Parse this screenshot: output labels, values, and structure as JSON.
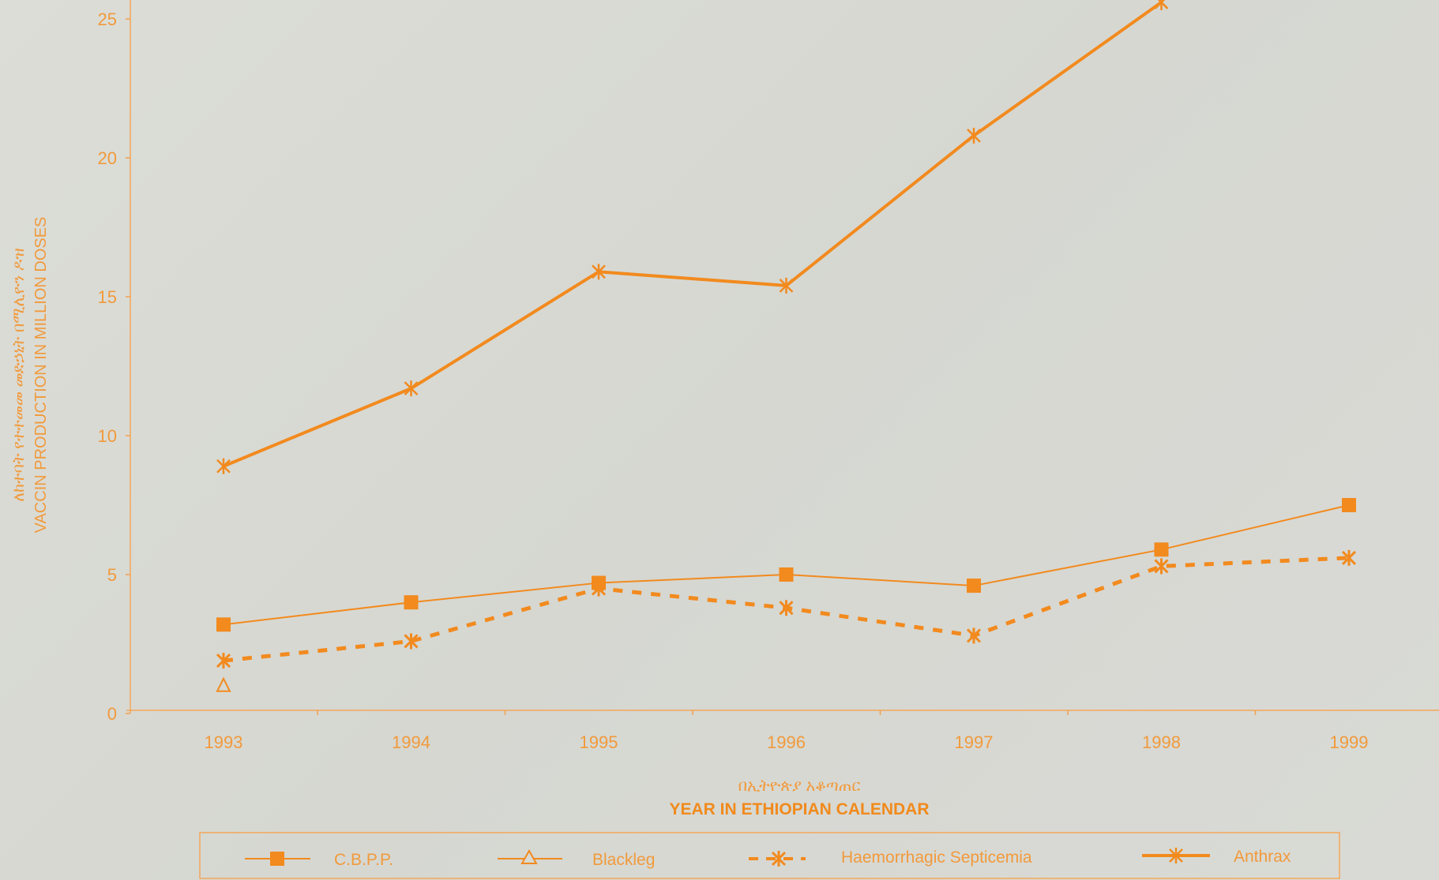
{
  "colors": {
    "accent": "#f28a1e",
    "light_accent": "#f4a04d",
    "background": "#d9dad4"
  },
  "chart_data": {
    "type": "line",
    "x": [
      1993,
      1994,
      1995,
      1996,
      1997,
      1998,
      1999
    ],
    "x_tick_labels": [
      "1993",
      "1994",
      "1995",
      "1996",
      "1997",
      "1998",
      "1999"
    ],
    "ylim": [
      0,
      25
    ],
    "y_ticks": [
      0,
      5,
      10,
      15,
      20,
      25
    ],
    "y_tick_labels": [
      "0",
      "5",
      "10",
      "15",
      "20",
      "25"
    ],
    "ylabel_amharic": "ለከተባት የተተመመ መድኃኒት በሚሊዮን ዶዝ",
    "ylabel": "VACCIN PRODUCTION IN MILLION DOSES",
    "xlabel_amharic": "በኢትዮጵያ አቆጣጠር",
    "xlabel": "YEAR IN ETHIOPIAN CALENDAR",
    "grid": false,
    "legend_position": "bottom",
    "series": [
      {
        "name": "C.B.P.P.",
        "marker": "square",
        "line_style": "solid-thin",
        "values": [
          3.2,
          4.0,
          4.7,
          5.0,
          4.6,
          5.9,
          7.5
        ]
      },
      {
        "name": "Blackleg",
        "marker": "triangle",
        "line_style": "solid-thin",
        "values": [
          1.0,
          null,
          null,
          null,
          null,
          null,
          null
        ]
      },
      {
        "name": "Haemorrhagic Septicemia",
        "marker": "x",
        "line_style": "dashed",
        "values": [
          1.9,
          2.6,
          4.5,
          3.8,
          2.8,
          5.3,
          5.6
        ]
      },
      {
        "name": "Anthrax",
        "marker": "star",
        "line_style": "solid-thick",
        "values": [
          8.9,
          11.7,
          15.9,
          15.4,
          20.8,
          25.6,
          null
        ]
      }
    ]
  }
}
